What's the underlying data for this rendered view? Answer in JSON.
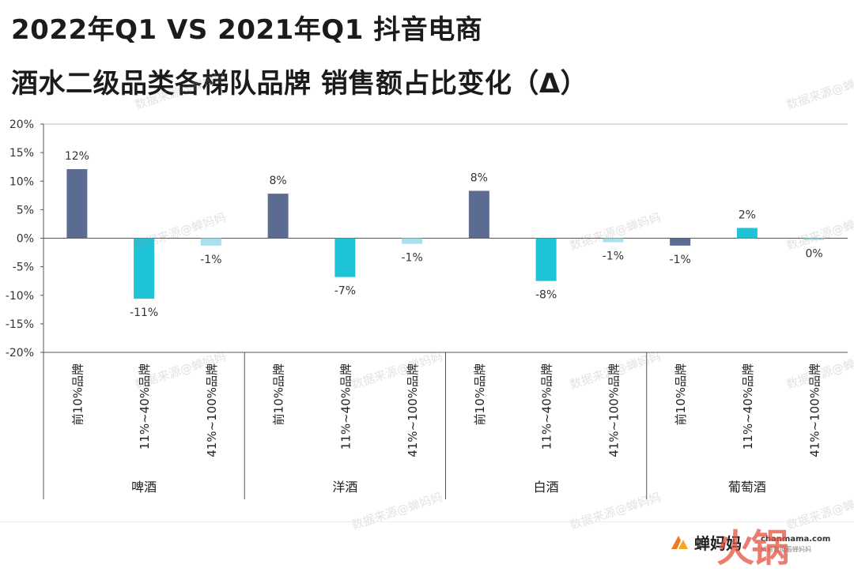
{
  "title_line1": "2022年Q1 VS 2021年Q1 抖音电商",
  "title_line2": "酒水二级品类各梯队品牌 销售额占比变化（Δ）",
  "watermark": "数据来源@蝉妈妈",
  "brand": {
    "name": "蝉妈妈",
    "site": "chanmama.com",
    "tagline": "抖音数据看蝉妈妈",
    "corner_mark": "火锅"
  },
  "colors": {
    "top10": "#5b6b91",
    "mid": "#1ec3d8",
    "tail": "#aadff0",
    "axis": "#555555",
    "grid": "#d9d9d9"
  },
  "chart_data": {
    "type": "bar",
    "ylim": [
      -20,
      20
    ],
    "yticks": [
      -20,
      -15,
      -10,
      -5,
      0,
      5,
      10,
      15,
      20
    ],
    "ytick_labels": [
      "-20%",
      "-15%",
      "-10%",
      "-5%",
      "0%",
      "5%",
      "10%",
      "15%",
      "20%"
    ],
    "tiers": [
      "前10%品牌",
      "11%~40%品牌",
      "41%~100%品牌"
    ],
    "groups": [
      {
        "name": "啤酒",
        "values": [
          12.1,
          -10.6,
          -1.3
        ],
        "labels": [
          "12%",
          "-11%",
          "-1%"
        ]
      },
      {
        "name": "洋酒",
        "values": [
          7.8,
          -6.8,
          -1.0
        ],
        "labels": [
          "8%",
          "-7%",
          "-1%"
        ]
      },
      {
        "name": "白酒",
        "values": [
          8.3,
          -7.5,
          -0.7
        ],
        "labels": [
          "8%",
          "-8%",
          "-1%"
        ]
      },
      {
        "name": "葡萄酒",
        "values": [
          -1.3,
          1.8,
          -0.3
        ],
        "labels": [
          "-1%",
          "2%",
          "0%"
        ]
      }
    ]
  }
}
